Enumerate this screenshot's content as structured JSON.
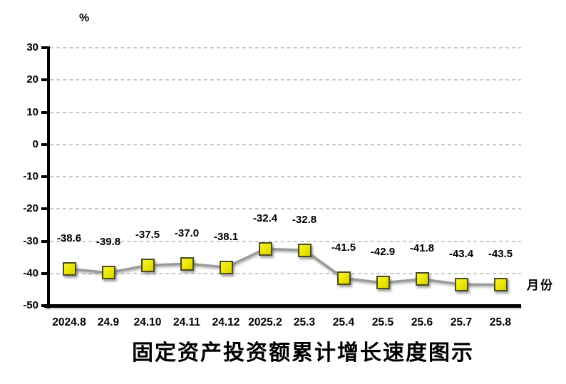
{
  "chart_data": {
    "type": "line",
    "title": "固定资产投资额累计增长速度图示",
    "y_axis_unit_label": "%",
    "x_axis_label": "月份",
    "categories": [
      "2024.8",
      "24.9",
      "24.10",
      "24.11",
      "24.12",
      "2025.2",
      "25.3",
      "25.4",
      "25.5",
      "25.6",
      "25.7",
      "25.8"
    ],
    "values": [
      -38.6,
      -39.8,
      -37.5,
      -37.0,
      -38.1,
      -32.4,
      -32.8,
      -41.5,
      -42.9,
      -41.8,
      -43.4,
      -43.5
    ],
    "ylim": [
      -50,
      30
    ],
    "y_ticks": [
      30,
      20,
      10,
      0,
      -10,
      -20,
      -30,
      -40,
      -50
    ],
    "grid": "horizontal-dashed",
    "legend_position": "none",
    "data_labels_shown": true,
    "colors": {
      "marker_fill": "#e9e400",
      "marker_border": "#4c4c20",
      "line": "#9b9b9b",
      "gridline": "#c9c9c9",
      "axis": "#000000",
      "text": "#000000",
      "background": "#ffffff"
    }
  }
}
